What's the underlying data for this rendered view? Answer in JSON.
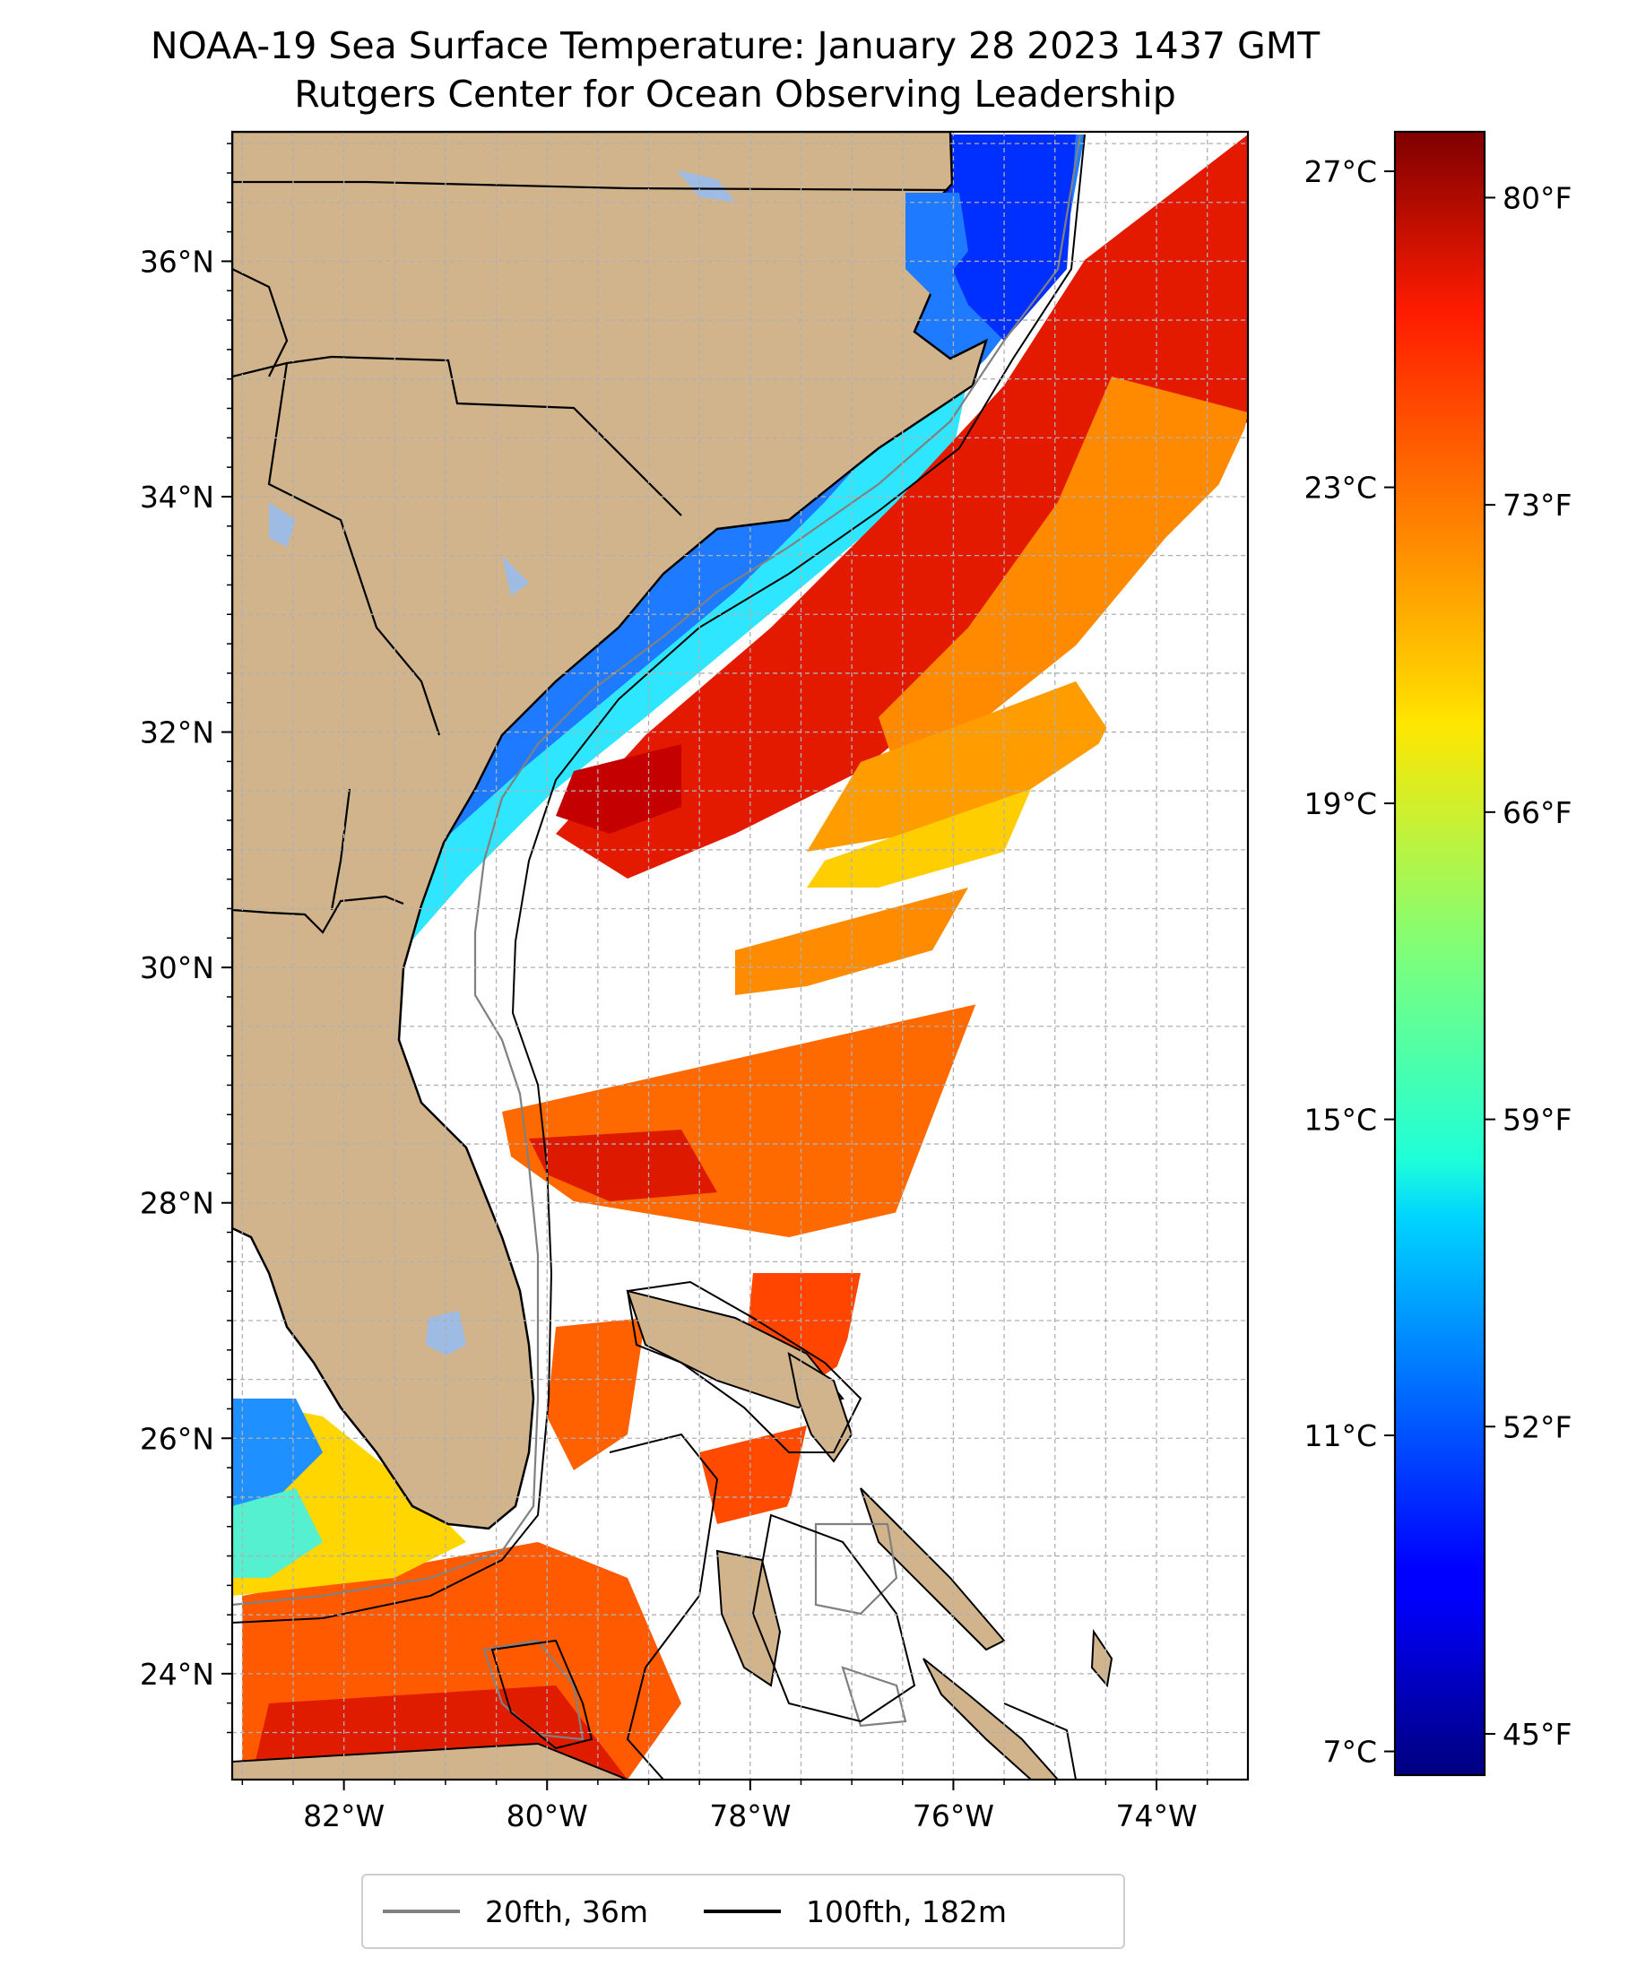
{
  "title": {
    "line1": "NOAA-19 Sea Surface Temperature: January 28 2023 1437 GMT",
    "line2": "Rutgers Center for Ocean Observing Leadership"
  },
  "map": {
    "lat_range": [
      23.1,
      37.1
    ],
    "lon_range": [
      -83.1,
      -73.1
    ],
    "lat_ticks": [
      {
        "value": 24,
        "label": "24°N"
      },
      {
        "value": 26,
        "label": "26°N"
      },
      {
        "value": 28,
        "label": "28°N"
      },
      {
        "value": 30,
        "label": "30°N"
      },
      {
        "value": 32,
        "label": "32°N"
      },
      {
        "value": 34,
        "label": "34°N"
      },
      {
        "value": 36,
        "label": "36°N"
      }
    ],
    "lon_ticks": [
      {
        "value": -82,
        "label": "82°W"
      },
      {
        "value": -80,
        "label": "80°W"
      },
      {
        "value": -78,
        "label": "78°W"
      },
      {
        "value": -76,
        "label": "76°W"
      },
      {
        "value": -74,
        "label": "74°W"
      }
    ],
    "colors": {
      "land": "#d2b48c",
      "lake": "#9dbbe3",
      "isobath_20fth": "#808080",
      "isobath_100fth": "#000000",
      "grid": "#b0b0b0"
    }
  },
  "colorbar": {
    "celsius_ticks": [
      {
        "value": 7,
        "label": "7°C"
      },
      {
        "value": 11,
        "label": "11°C"
      },
      {
        "value": 15,
        "label": "15°C"
      },
      {
        "value": 19,
        "label": "19°C"
      },
      {
        "value": 23,
        "label": "23°C"
      },
      {
        "value": 27,
        "label": "27°C"
      }
    ],
    "fahrenheit_ticks": [
      {
        "value": 45,
        "label": "45°F"
      },
      {
        "value": 52,
        "label": "52°F"
      },
      {
        "value": 59,
        "label": "59°F"
      },
      {
        "value": 66,
        "label": "66°F"
      },
      {
        "value": 73,
        "label": "73°F"
      },
      {
        "value": 80,
        "label": "80°F"
      }
    ],
    "colormap": "jet",
    "range_celsius": [
      6.7,
      27.5
    ]
  },
  "legend": {
    "items": [
      {
        "label": "20fth, 36m",
        "color": "#808080"
      },
      {
        "label": "100fth, 182m",
        "color": "#000000"
      }
    ]
  }
}
